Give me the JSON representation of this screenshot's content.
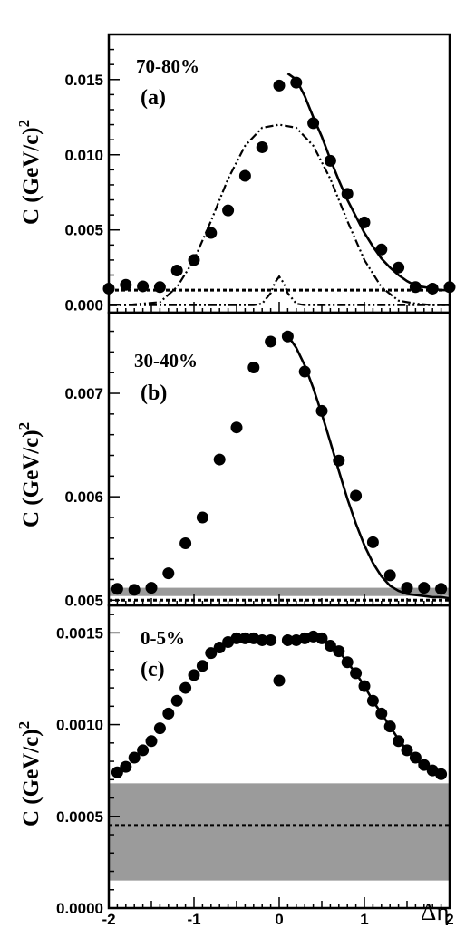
{
  "chart_data": [
    {
      "type": "scatter",
      "panel": "a",
      "centrality": "70-80%",
      "letter": "(a)",
      "ylabel": "C  (GeV/c)",
      "ylabel_sup": "2",
      "xlim": [
        -2,
        2
      ],
      "ylim": [
        -0.0005,
        0.018
      ],
      "yticks": [
        0.0,
        0.005,
        0.01,
        0.015
      ],
      "ytick_labels": [
        "0.000",
        "0.005",
        "0.010",
        "0.015"
      ],
      "band": null,
      "baseline": 0.001,
      "points": {
        "x": [
          -2.0,
          -1.8,
          -1.6,
          -1.4,
          -1.2,
          -1.0,
          -0.8,
          -0.6,
          -0.4,
          -0.2,
          0.0,
          0.2,
          0.4,
          0.6,
          0.8,
          1.0,
          1.2,
          1.4,
          1.6,
          1.8,
          2.0
        ],
        "y": [
          0.0011,
          0.00135,
          0.00125,
          0.0012,
          0.0023,
          0.003,
          0.0048,
          0.0063,
          0.0086,
          0.0105,
          0.0146,
          0.0148,
          0.0121,
          0.0096,
          0.0074,
          0.0055,
          0.0037,
          0.0025,
          0.0012,
          0.0011,
          0.0012
        ]
      },
      "fit_curve": {
        "x": [
          0.1,
          0.2,
          0.3,
          0.4,
          0.5,
          0.6,
          0.7,
          0.8,
          0.9,
          1.0,
          1.1,
          1.2,
          1.3,
          1.4,
          1.5,
          1.6,
          1.7,
          1.8,
          1.9,
          2.0
        ],
        "y": [
          0.0154,
          0.015,
          0.0139,
          0.0125,
          0.0112,
          0.0097,
          0.0083,
          0.007,
          0.0059,
          0.0048,
          0.0039,
          0.0031,
          0.0025,
          0.002,
          0.0016,
          0.0013,
          0.0012,
          0.0011,
          0.001,
          0.001
        ]
      },
      "gaussian_curve": {
        "x": [
          -2.0,
          -1.8,
          -1.6,
          -1.4,
          -1.2,
          -1.0,
          -0.8,
          -0.6,
          -0.4,
          -0.2,
          0.0,
          0.2,
          0.4,
          0.6,
          0.8,
          1.0,
          1.2,
          1.4,
          1.6,
          1.8,
          2.0
        ],
        "y": [
          0.0,
          0.0,
          0.0001,
          0.0002,
          0.0012,
          0.003,
          0.0056,
          0.0084,
          0.0106,
          0.0118,
          0.012,
          0.0118,
          0.0106,
          0.0084,
          0.0056,
          0.003,
          0.0012,
          0.0003,
          0.0001,
          0.0,
          0.0
        ]
      },
      "narrow_peak": {
        "x": [
          -2.0,
          -0.3,
          -0.2,
          -0.1,
          -0.05,
          0.0,
          0.05,
          0.1,
          0.2,
          0.3,
          2.0
        ],
        "y": [
          0.0,
          0.0,
          0.0001,
          0.0008,
          0.0015,
          0.0019,
          0.0015,
          0.0008,
          0.0001,
          0.0,
          0.0
        ]
      }
    },
    {
      "type": "scatter",
      "panel": "b",
      "centrality": "30-40%",
      "letter": "(b)",
      "ylabel": "C  (GeV/c)",
      "ylabel_sup": "2",
      "xlim": [
        -2,
        2
      ],
      "ylim": [
        0.00495,
        0.00778
      ],
      "yticks": [
        0.005,
        0.006,
        0.007
      ],
      "ytick_labels": [
        "0.005",
        "0.006",
        "0.007"
      ],
      "band": [
        0.00504,
        0.00512
      ],
      "baseline": 0.005,
      "points": {
        "x": [
          -1.9,
          -1.7,
          -1.5,
          -1.3,
          -1.1,
          -0.9,
          -0.7,
          -0.5,
          -0.3,
          -0.1,
          0.1,
          0.3,
          0.5,
          0.7,
          0.9,
          1.1,
          1.3,
          1.5,
          1.7,
          1.9
        ],
        "y": [
          0.00511,
          0.0051,
          0.00512,
          0.00526,
          0.00555,
          0.0058,
          0.00636,
          0.00667,
          0.00725,
          0.0075,
          0.00755,
          0.00721,
          0.00683,
          0.00635,
          0.00601,
          0.00556,
          0.00524,
          0.00512,
          0.00512,
          0.00511
        ]
      },
      "fit_curve": {
        "x": [
          0.1,
          0.2,
          0.3,
          0.4,
          0.5,
          0.6,
          0.7,
          0.8,
          0.9,
          1.0,
          1.1,
          1.2,
          1.3,
          1.4,
          1.5,
          1.6,
          1.7,
          1.8,
          1.9,
          2.0
        ],
        "y": [
          0.00756,
          0.00744,
          0.00727,
          0.00705,
          0.0068,
          0.00653,
          0.00625,
          0.00598,
          0.00574,
          0.00553,
          0.00536,
          0.00523,
          0.00514,
          0.00509,
          0.00506,
          0.00505,
          0.00504,
          0.00503,
          0.00503,
          0.00502
        ]
      }
    },
    {
      "type": "scatter",
      "panel": "c",
      "centrality": "0-5%",
      "letter": "(c)",
      "ylabel": "C  (GeV/c)",
      "ylabel_sup": "2",
      "xlabel": "Δη",
      "xlim": [
        -2,
        2
      ],
      "ylim": [
        0.0,
        0.00165
      ],
      "yticks": [
        0.0,
        0.0005,
        0.001,
        0.0015
      ],
      "ytick_labels": [
        "0.0000",
        "0.0005",
        "0.0010",
        "0.0015"
      ],
      "xticks": [
        -2,
        -1,
        0,
        1,
        2
      ],
      "xtick_labels": [
        "-2",
        "-1",
        "0",
        "1",
        "2"
      ],
      "band": [
        0.00015,
        0.00068
      ],
      "baseline": 0.00045,
      "points": {
        "x": [
          -1.9,
          -1.8,
          -1.7,
          -1.6,
          -1.5,
          -1.4,
          -1.3,
          -1.2,
          -1.1,
          -1.0,
          -0.9,
          -0.8,
          -0.7,
          -0.6,
          -0.5,
          -0.4,
          -0.3,
          -0.2,
          -0.1,
          0.0,
          0.1,
          0.2,
          0.3,
          0.4,
          0.5,
          0.6,
          0.7,
          0.8,
          0.9,
          1.0,
          1.1,
          1.2,
          1.3,
          1.4,
          1.5,
          1.6,
          1.7,
          1.8,
          1.9
        ],
        "y": [
          0.00074,
          0.00077,
          0.00082,
          0.00086,
          0.00091,
          0.00098,
          0.00106,
          0.00113,
          0.0012,
          0.00127,
          0.00132,
          0.00139,
          0.00142,
          0.00145,
          0.00147,
          0.00147,
          0.00147,
          0.00146,
          0.00146,
          0.00124,
          0.00146,
          0.00146,
          0.00147,
          0.00148,
          0.00147,
          0.00143,
          0.0014,
          0.00134,
          0.00128,
          0.00121,
          0.00113,
          0.00106,
          0.00099,
          0.00091,
          0.00086,
          0.00082,
          0.00078,
          0.00075,
          0.00073
        ]
      },
      "fit_curve": {
        "x": [
          0.1,
          0.2,
          0.3,
          0.4,
          0.5,
          0.6,
          0.7,
          0.8,
          0.9,
          1.0,
          1.1,
          1.2,
          1.3,
          1.4,
          1.5,
          1.6,
          1.7,
          1.8,
          1.9
        ],
        "y": [
          0.00146,
          0.00146,
          0.00147,
          0.00148,
          0.00147,
          0.00144,
          0.0014,
          0.00134,
          0.00128,
          0.00121,
          0.00113,
          0.00106,
          0.00099,
          0.00092,
          0.00086,
          0.00081,
          0.00077,
          0.00074,
          0.00072
        ]
      }
    }
  ]
}
